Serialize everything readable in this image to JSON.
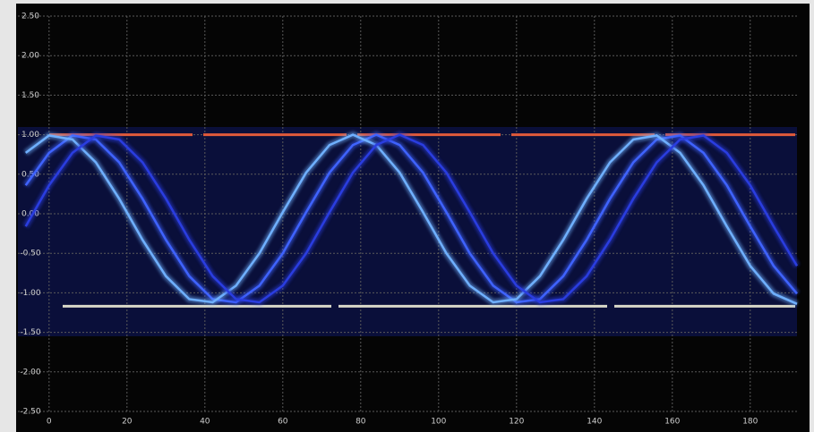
{
  "chart_data": {
    "type": "line",
    "x": [
      -6,
      0,
      6,
      12,
      18,
      24,
      30,
      36,
      42,
      48,
      54,
      60,
      66,
      72,
      78,
      84,
      90,
      96,
      102,
      108,
      114,
      120,
      126,
      132,
      138,
      144,
      150,
      156,
      162,
      168,
      174,
      180,
      186,
      192
    ],
    "series": [
      {
        "color": "#3f63ff",
        "values": [
          0.36,
          0.77,
          0.99,
          0.94,
          0.65,
          0.19,
          -0.33,
          -0.79,
          -1.08,
          -1.12,
          -0.91,
          -0.5,
          0.02,
          0.52,
          0.87,
          1.0,
          0.87,
          0.52,
          0.02,
          -0.5,
          -0.91,
          -1.12,
          -1.08,
          -0.79,
          -0.33,
          0.19,
          0.65,
          0.94,
          0.99,
          0.77,
          0.36,
          -0.16,
          -0.66,
          -1.01
        ]
      },
      {
        "color": "#6fb0ff",
        "values": [
          0.77,
          0.99,
          0.94,
          0.65,
          0.19,
          -0.33,
          -0.79,
          -1.08,
          -1.12,
          -0.91,
          -0.5,
          0.02,
          0.52,
          0.87,
          1.0,
          0.87,
          0.52,
          0.02,
          -0.5,
          -0.91,
          -1.12,
          -1.08,
          -0.79,
          -0.33,
          0.19,
          0.65,
          0.94,
          0.99,
          0.77,
          0.36,
          -0.16,
          -0.66,
          -1.01,
          -1.14
        ]
      },
      {
        "color": "#2a3de0",
        "values": [
          -0.16,
          0.36,
          0.77,
          0.99,
          0.94,
          0.65,
          0.19,
          -0.33,
          -0.79,
          -1.08,
          -1.12,
          -0.91,
          -0.5,
          0.02,
          0.52,
          0.87,
          1.0,
          0.87,
          0.52,
          0.02,
          -0.5,
          -0.91,
          -1.12,
          -1.08,
          -0.79,
          -0.33,
          0.19,
          0.65,
          0.94,
          0.99,
          0.77,
          0.36,
          -0.16,
          -0.66
        ]
      }
    ],
    "levels": [
      1.0,
      -1.17
    ],
    "xlim": [
      -8,
      192
    ],
    "xticks": [
      0,
      20,
      40,
      60,
      80,
      100,
      120,
      140,
      160,
      180
    ],
    "ylim": [
      -2.5,
      2.5
    ],
    "yticks": [
      {
        "value": 2.5,
        "label": "2.50"
      },
      {
        "value": 2,
        "label": "2.00"
      },
      {
        "value": 1.5,
        "label": "1.50"
      },
      {
        "value": 1,
        "label": "1.00"
      },
      {
        "value": 0.5,
        "label": "0.50"
      },
      {
        "value": 0,
        "label": "0.00"
      },
      {
        "value": -0.5,
        "label": "-0.50"
      },
      {
        "value": -1,
        "label": "-1.00"
      },
      {
        "value": -1.5,
        "label": "-1.50"
      },
      {
        "value": -2,
        "label": "-2.00"
      },
      {
        "value": -2.5,
        "label": "-2.50"
      }
    ],
    "grid": true
  }
}
